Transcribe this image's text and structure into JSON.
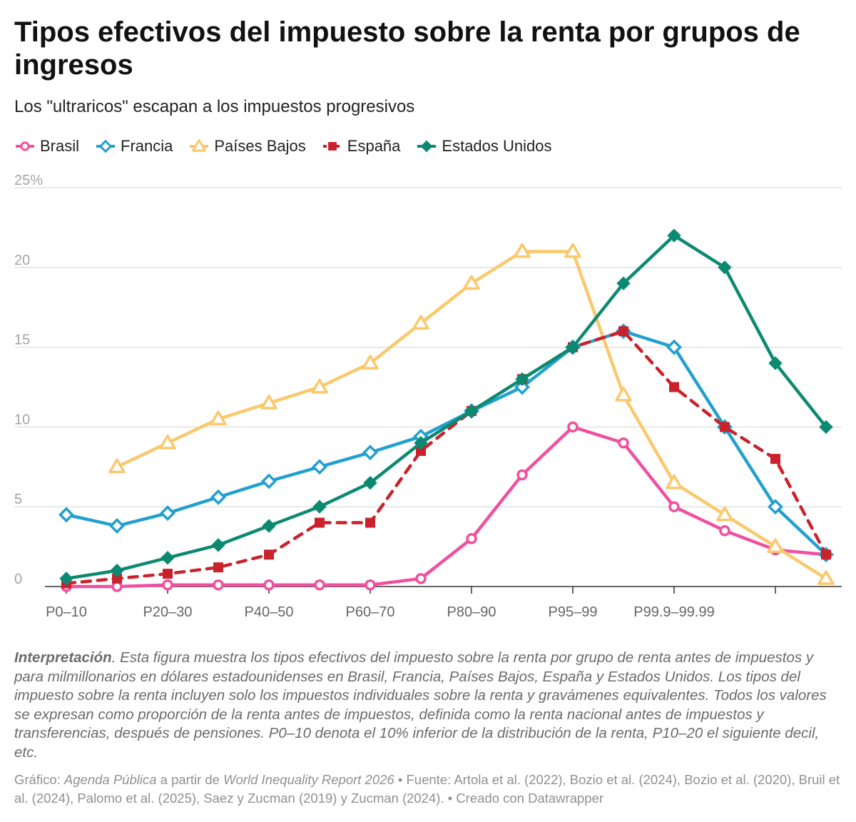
{
  "title": "Tipos efectivos del impuesto sobre la renta por grupos de ingresos",
  "subtitle": "Los \"ultraricos\" escapan a los impuestos progresivos",
  "notes": {
    "lead": "Interpretación",
    "text": ". Esta figura muestra los tipos efectivos del impuesto sobre la renta por grupo de renta antes de impuestos y para milmillonarios en dólares estadounidenses en Brasil, Francia, Países Bajos, España y Estados Unidos. Los tipos del impuesto sobre la renta incluyen solo los impuestos individuales sobre la renta y gravámenes equivalentes. Todos los valores se expresan como proporción de la renta antes de impuestos, definida como la renta nacional antes de impuestos y transferencias, después de pensiones. P0–10 denota el 10% inferior de la distribución de la renta, P10–20 el siguiente decil, etc."
  },
  "credits": {
    "prefix": "Gráfico: ",
    "author": "Agenda Pública",
    "middle": " a partir de ",
    "report": "World Inequality Report 2026",
    "source": "  • Fuente: Artola et al. (2022), Bozio et al. (2024), Bozio et al. (2020), Bruil et al. (2024), Palomo et al. (2025), Saez y Zucman (2019) y Zucman (2024). • Creado con Datawrapper"
  },
  "chart_data": {
    "type": "line",
    "x": [
      0,
      1,
      2,
      3,
      4,
      5,
      6,
      7,
      8,
      9,
      10,
      11,
      12,
      13,
      14,
      15
    ],
    "x_tick_positions": [
      0,
      2,
      4,
      6,
      8,
      10,
      12,
      14
    ],
    "x_tick_labels": [
      "P0–10",
      "P20–30",
      "P40–50",
      "P60–70",
      "P80–90",
      "P95–99",
      "P99.9–99.99",
      ""
    ],
    "y_ticks": [
      0,
      5,
      10,
      15,
      20,
      25
    ],
    "y_tick_labels": [
      "0",
      "5",
      "10",
      "15",
      "20",
      "25%"
    ],
    "ylim": [
      0,
      25
    ],
    "xlim": [
      0,
      15
    ],
    "grid": true,
    "legend_position": "top-left",
    "series": [
      {
        "name": "Brasil",
        "color": "#f0509f",
        "marker": "circle-open",
        "dashed": false,
        "values": [
          0,
          0,
          0.1,
          0.1,
          0.1,
          0.1,
          0.1,
          0.5,
          3,
          7,
          10,
          9,
          5,
          3.5,
          2.3,
          2
        ]
      },
      {
        "name": "Francia",
        "color": "#22a0cf",
        "marker": "diamond-open",
        "dashed": false,
        "values": [
          4.5,
          3.8,
          4.6,
          5.6,
          6.6,
          7.5,
          8.4,
          9.4,
          11,
          12.5,
          15,
          16,
          15,
          10,
          5,
          2
        ]
      },
      {
        "name": "Países Bajos",
        "color": "#fbc86c",
        "marker": "triangle-open",
        "dashed": false,
        "values": [
          null,
          7.5,
          9,
          10.5,
          11.5,
          12.5,
          14,
          16.5,
          19,
          21,
          21,
          12,
          6.5,
          4.5,
          2.5,
          0.5
        ]
      },
      {
        "name": "España",
        "color": "#c9222c",
        "marker": "square",
        "dashed": true,
        "values": [
          0.2,
          0.5,
          0.8,
          1.2,
          2,
          4,
          4,
          8.5,
          11,
          13,
          15,
          16,
          12.5,
          10,
          8,
          2
        ]
      },
      {
        "name": "Estados Unidos",
        "color": "#0b8a71",
        "marker": "diamond",
        "dashed": false,
        "values": [
          0.5,
          1,
          1.8,
          2.6,
          3.8,
          5,
          6.5,
          9,
          11,
          13,
          15,
          19,
          22,
          20,
          14,
          10
        ]
      }
    ]
  }
}
